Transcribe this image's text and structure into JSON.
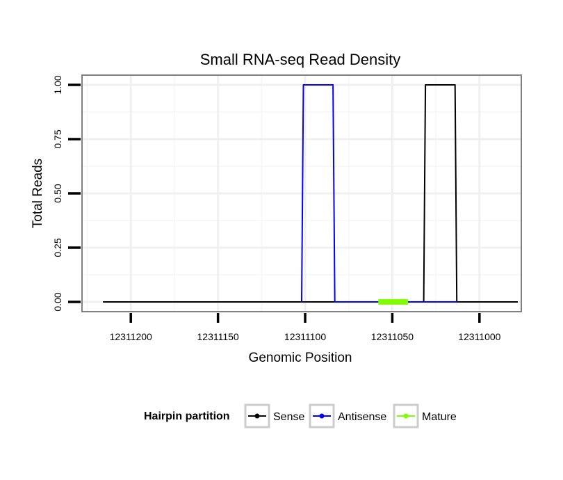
{
  "chart_data": {
    "type": "line",
    "title": "Small RNA-seq Read Density",
    "xlabel": "Genomic Position",
    "ylabel": "Total Reads",
    "x_reversed": true,
    "xlim": [
      12311228,
      12310976
    ],
    "ylim": [
      -0.045,
      1.045
    ],
    "x_ticks": [
      12311200,
      12311150,
      12311100,
      12311050,
      12311000
    ],
    "x_tick_labels": [
      "12311200",
      "12311150",
      "12311100",
      "12311050",
      "12311000"
    ],
    "y_ticks": [
      0,
      0.25,
      0.5,
      0.75,
      1
    ],
    "y_tick_labels": [
      "0.00",
      "0.25",
      "0.50",
      "0.75",
      "1.00"
    ],
    "grid": true,
    "legend": {
      "title": "Hairpin partition",
      "position": "bottom",
      "entries": [
        "Sense",
        "Antisense",
        "Mature"
      ]
    },
    "series": [
      {
        "name": "Sense",
        "color": "#000000",
        "x": [
          12311216,
          12311032,
          12311031,
          12311014,
          12311013,
          12310978
        ],
        "y": [
          0,
          0,
          1,
          1,
          0,
          0
        ]
      },
      {
        "name": "Antisense",
        "color": "#0000ff",
        "x": [
          12311102,
          12311101,
          12311084,
          12311083,
          12311032,
          12311013
        ],
        "y": [
          0,
          1,
          1,
          0,
          0,
          0
        ]
      },
      {
        "name": "Mature",
        "color": "#7fff00",
        "x": [
          12311058,
          12311041
        ],
        "y": [
          0,
          0
        ]
      }
    ]
  }
}
